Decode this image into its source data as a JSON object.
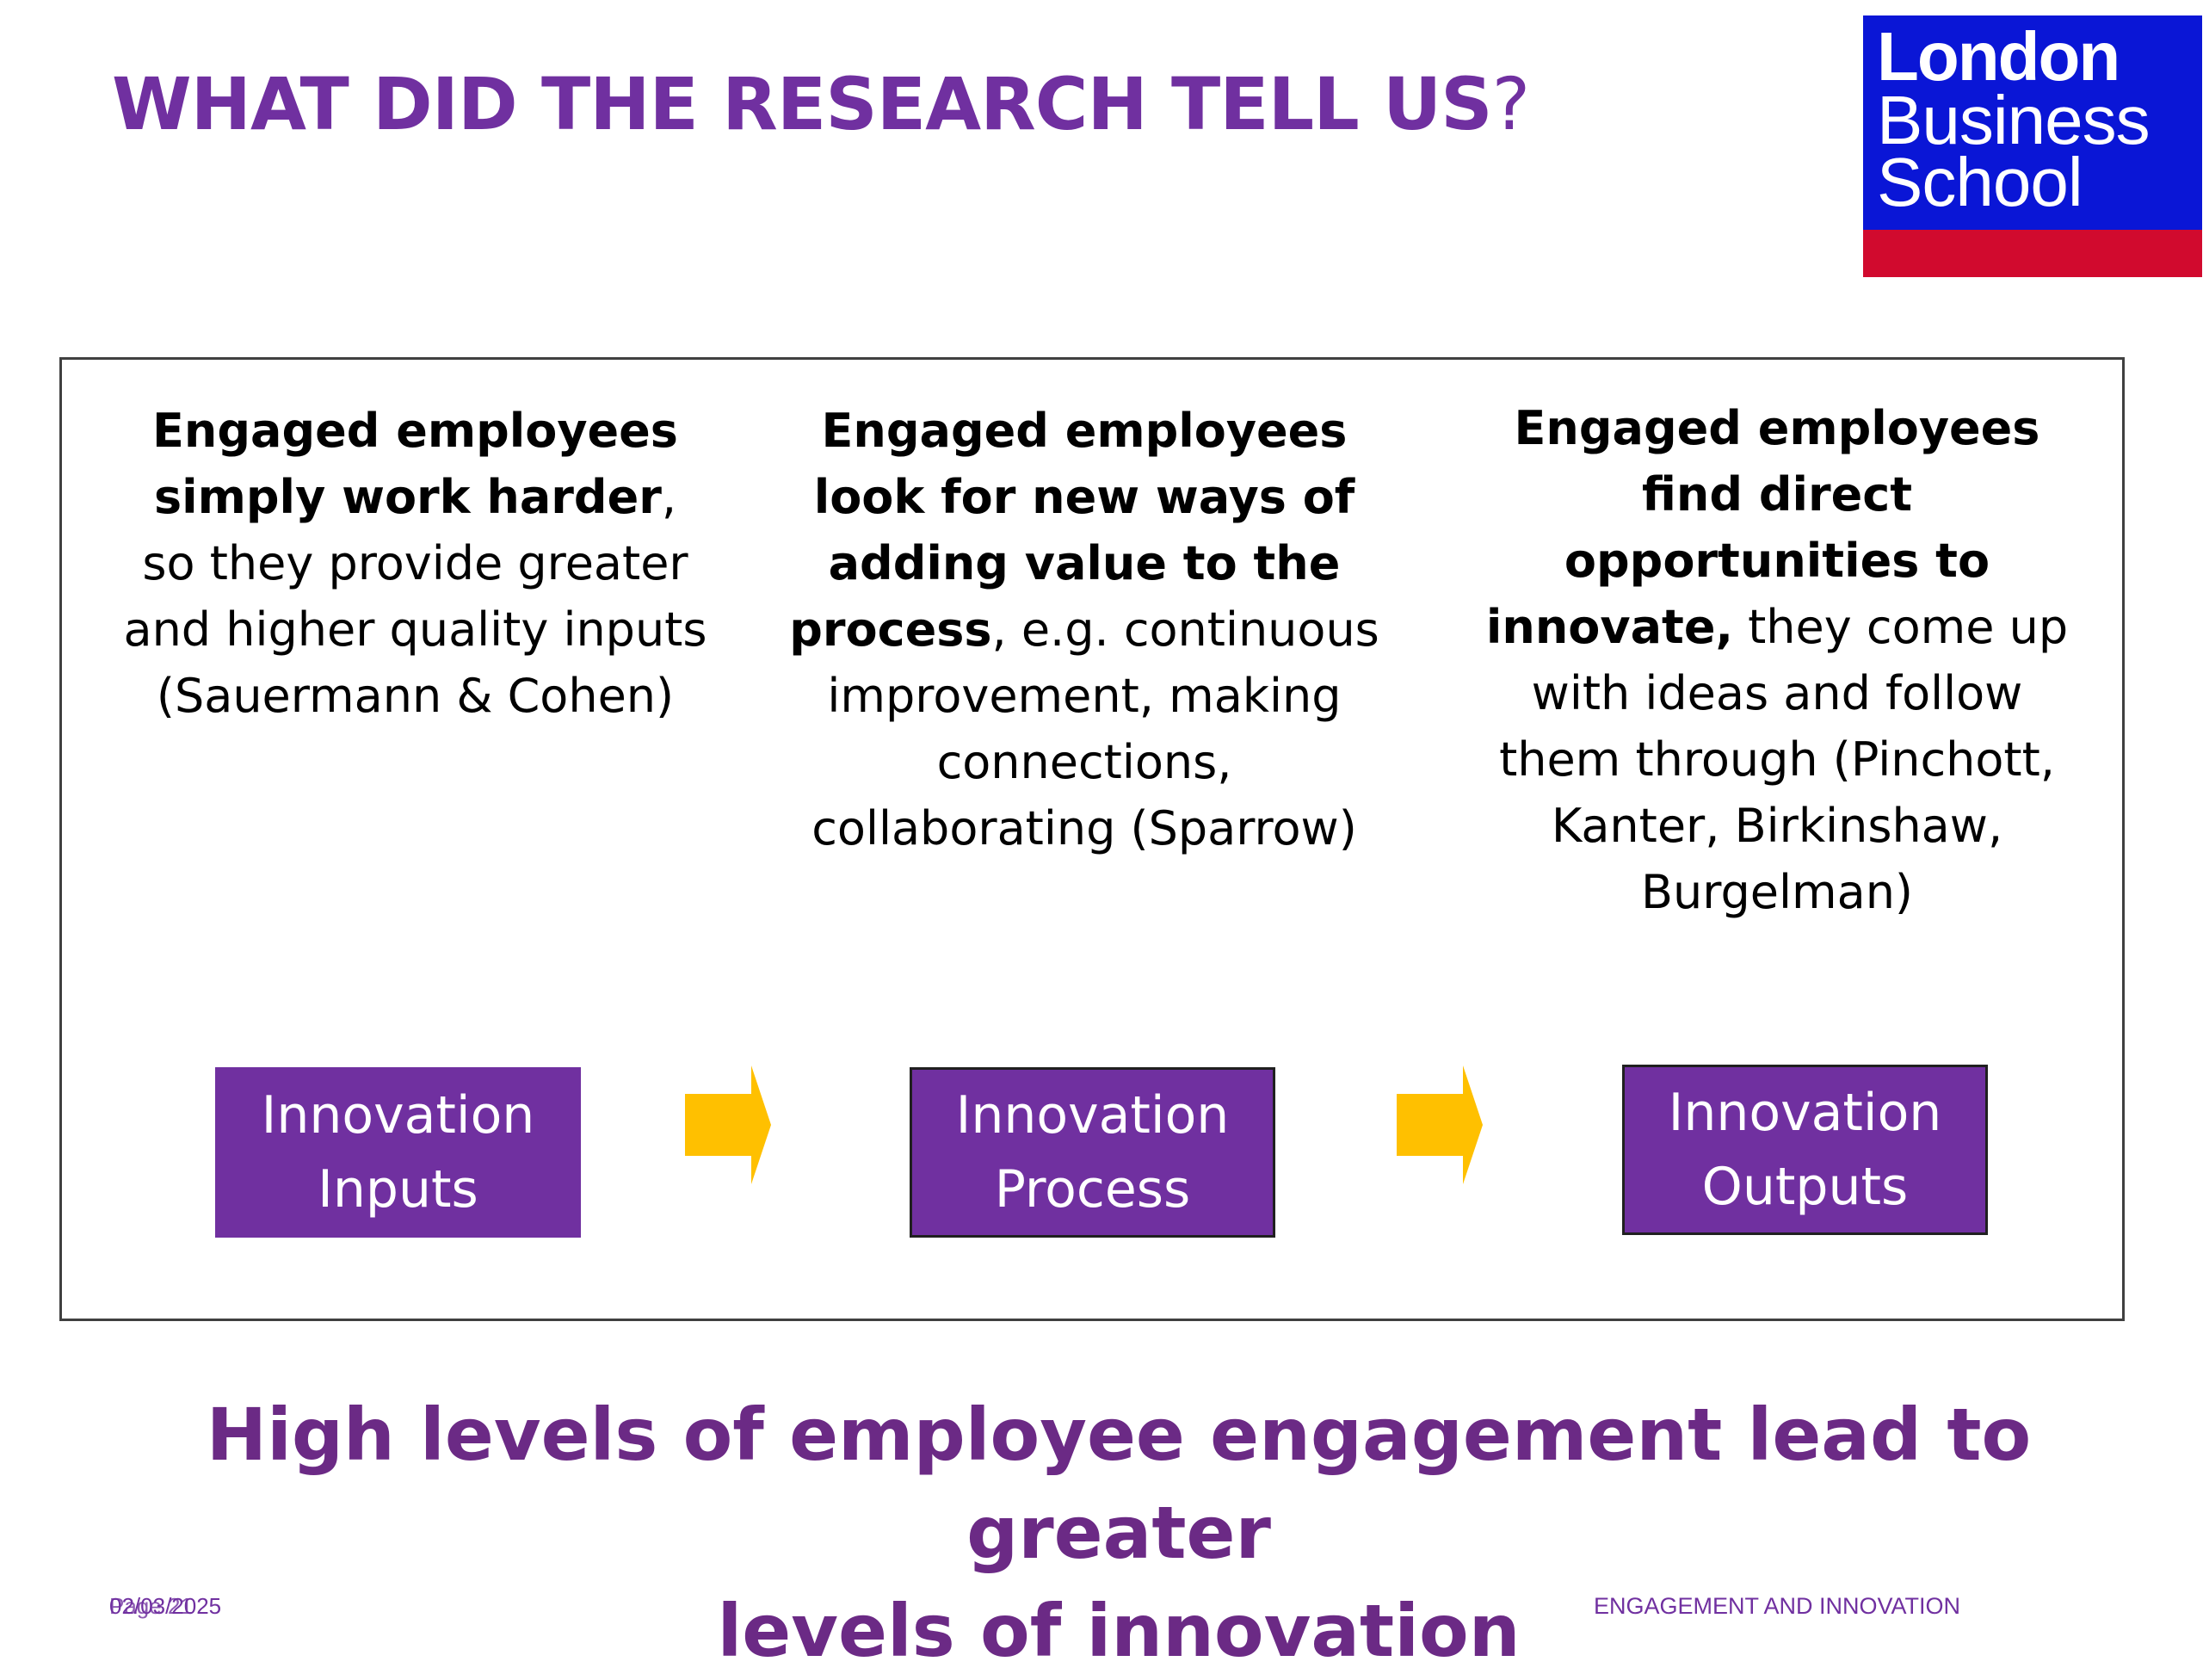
{
  "slide": {
    "title_main": "WHAT DID THE RESEARCH TELL US",
    "title_qmark": "?"
  },
  "logo": {
    "line1": "London",
    "line2": "Business",
    "line3": "School",
    "colors": {
      "background": "#0a16d6",
      "stripe": "#d10a2e"
    }
  },
  "columns": [
    {
      "bold": "Engaged employees simply work harder",
      "normal": ", so they provide greater and higher quality inputs (Sauermann & Cohen)"
    },
    {
      "bold": "Engaged employees look for new ways of adding value to the process",
      "normal": ", e.g. continuous improvement, making connections, collaborating (Sparrow)"
    },
    {
      "bold": "Engaged employees find direct opportunities to innovate,",
      "normal": " they come up with ideas and follow them through (Pinchott, Kanter, Birkinshaw, Burgelman)"
    }
  ],
  "flow": {
    "boxes": [
      {
        "line1": "Innovation",
        "line2": "Inputs"
      },
      {
        "line1": "Innovation",
        "line2": "Process"
      },
      {
        "line1": "Innovation",
        "line2": "Outputs"
      }
    ],
    "arrow_icon": "right-arrow-icon",
    "colors": {
      "box": "#7030a0",
      "arrow": "#ffc000"
    }
  },
  "conclusion": {
    "line1": "High levels of employee engagement lead to greater",
    "line2": "levels of innovation"
  },
  "footer": {
    "date": "02/03/2025",
    "page": "Page 21",
    "section": "ENGAGEMENT AND INNOVATION"
  },
  "colors": {
    "accent": "#7030a0",
    "conclusion": "#6b2a85"
  }
}
